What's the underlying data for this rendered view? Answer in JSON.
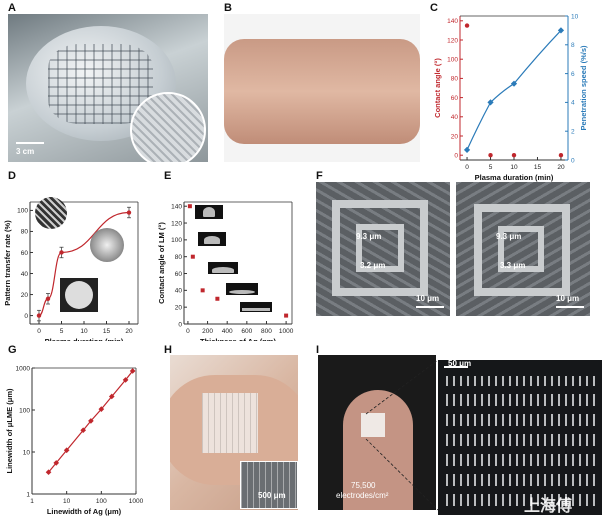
{
  "panels": {
    "A": {
      "label": "A",
      "scale": "3 cm"
    },
    "B": {
      "label": "B"
    },
    "C": {
      "label": "C"
    },
    "D": {
      "label": "D"
    },
    "E": {
      "label": "E"
    },
    "F": {
      "label": "F",
      "left": {
        "w1": "9.3 μm",
        "w2": "3.2 μm",
        "scale": "10 μm"
      },
      "right": {
        "w1": "9.3 μm",
        "w2": "3.3 μm",
        "scale": "10 μm"
      }
    },
    "G": {
      "label": "G"
    },
    "H": {
      "label": "H",
      "scale": "500 μm"
    },
    "I": {
      "label": "I",
      "density_value": "75,500",
      "density_unit": "electrodes/cm²",
      "scale": "50 μm"
    }
  },
  "watermark": "上海傅",
  "colors": {
    "red": "#c0272d",
    "blue": "#2b7bb9",
    "dark": "#333333"
  },
  "chart_data": [
    {
      "id": "C",
      "type": "scatter",
      "xlabel": "Plasma duration (min)",
      "ylabel": "Contact angle (°)",
      "y2label": "Penetration speed (%/s)",
      "xticks": [
        0,
        5,
        10,
        15,
        20
      ],
      "yticks": [
        0,
        20,
        40,
        60,
        80,
        100,
        120,
        140
      ],
      "y2ticks": [
        0,
        2,
        4,
        6,
        8,
        10
      ],
      "xlim": [
        -1.5,
        21.5
      ],
      "ylim": [
        -5,
        145
      ],
      "y2lim": [
        0,
        10
      ],
      "series": [
        {
          "axis": "left",
          "color": "#c0272d",
          "x": [
            0,
            5,
            10,
            20
          ],
          "y": [
            135,
            0,
            0,
            0
          ]
        },
        {
          "axis": "right",
          "color": "#2b7bb9",
          "x": [
            0,
            5,
            10,
            20
          ],
          "y": [
            0.7,
            4.0,
            5.3,
            9.0
          ],
          "fit": true
        }
      ]
    },
    {
      "id": "D",
      "type": "line",
      "xlabel": "Plasma duration (min)",
      "ylabel": "Pattern transfer rate (%)",
      "xticks": [
        0,
        5,
        10,
        15,
        20
      ],
      "yticks": [
        0,
        20,
        40,
        60,
        80,
        100
      ],
      "xlim": [
        -2,
        22
      ],
      "ylim": [
        -8,
        108
      ],
      "series": [
        {
          "color": "#c0272d",
          "x": [
            0,
            2,
            5,
            20
          ],
          "y": [
            0,
            16,
            60,
            98
          ],
          "err": [
            5,
            5,
            5,
            5
          ]
        }
      ]
    },
    {
      "id": "E",
      "type": "scatter",
      "xlabel": "Thickness of Ag (nm)",
      "ylabel": "Contact angle of LM (°)",
      "xticks": [
        0,
        200,
        400,
        600,
        800,
        1000
      ],
      "yticks": [
        0,
        20,
        40,
        60,
        80,
        100,
        120,
        140
      ],
      "xlim": [
        -40,
        1060
      ],
      "ylim": [
        0,
        145
      ],
      "series": [
        {
          "color": "#c0272d",
          "x": [
            20,
            50,
            150,
            300,
            1000
          ],
          "y": [
            140,
            80,
            40,
            30,
            10
          ]
        }
      ]
    },
    {
      "id": "G",
      "type": "line",
      "xscale": "log",
      "yscale": "log",
      "xlabel": "Linewidth of Ag (μm)",
      "ylabel": "Linewidth of μLME (μm)",
      "xticks": [
        1,
        10,
        100,
        1000
      ],
      "yticks": [
        1,
        10,
        100,
        1000
      ],
      "xticklabels": [
        "1",
        "10",
        "100",
        "1000"
      ],
      "yticklabels": [
        "1",
        "10",
        "100",
        "1000"
      ],
      "xlim": [
        1,
        1000
      ],
      "ylim": [
        1,
        1000
      ],
      "series": [
        {
          "color": "#c0272d",
          "x": [
            3,
            5,
            10,
            30,
            50,
            100,
            200,
            500,
            800
          ],
          "y": [
            3.3,
            5.5,
            11,
            33,
            55,
            105,
            210,
            520,
            850
          ]
        }
      ]
    }
  ]
}
